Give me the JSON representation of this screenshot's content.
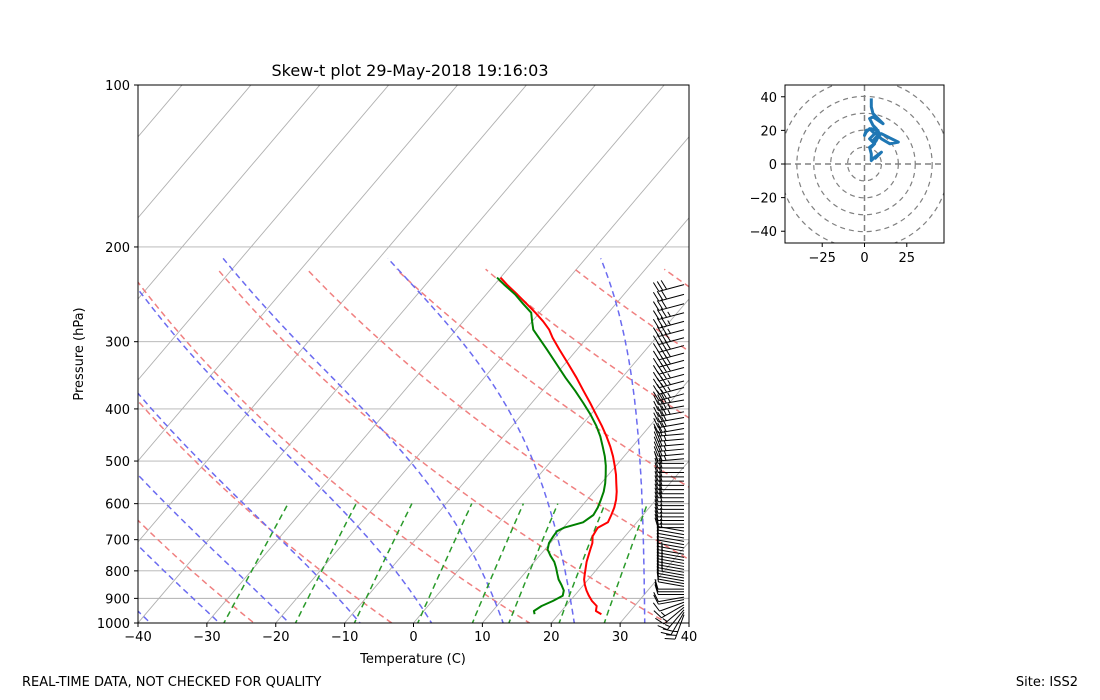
{
  "chart_data": [
    {
      "type": "skew-t",
      "title": "Skew-t plot 29-May-2018 19:16:03",
      "xlabel": "Temperature (C)",
      "ylabel": "Pressure (hPa)",
      "xlim": [
        -40,
        40
      ],
      "ylim": [
        1000,
        100
      ],
      "xticks": [
        -40,
        -30,
        -20,
        -10,
        0,
        10,
        20,
        30,
        40
      ],
      "xtick_labels": [
        "−40",
        "−30",
        "−20",
        "−10",
        "0",
        "10",
        "20",
        "30",
        "40"
      ],
      "yticks": [
        1000,
        900,
        800,
        700,
        600,
        500,
        400,
        300,
        200,
        100
      ],
      "ytick_labels": [
        "1000",
        "900",
        "800",
        "700",
        "600",
        "500",
        "400",
        "300",
        "200",
        "100"
      ],
      "series": [
        {
          "name": "Temperature",
          "color": "#ff0000",
          "points": [
            [
              963,
              26.2
            ],
            [
              950,
              25.0
            ],
            [
              930,
              24.5
            ],
            [
              910,
              23.2
            ],
            [
              890,
              22.1
            ],
            [
              870,
              21.1
            ],
            [
              850,
              20.2
            ],
            [
              830,
              19.4
            ],
            [
              810,
              18.8
            ],
            [
              790,
              18.2
            ],
            [
              770,
              17.6
            ],
            [
              750,
              17.1
            ],
            [
              730,
              16.6
            ],
            [
              710,
              16.1
            ],
            [
              690,
              15.3
            ],
            [
              675,
              15.1
            ],
            [
              665,
              15.0
            ],
            [
              650,
              15.8
            ],
            [
              630,
              15.4
            ],
            [
              610,
              14.9
            ],
            [
              590,
              14.2
            ],
            [
              570,
              13.3
            ],
            [
              550,
              12.2
            ],
            [
              530,
              11.1
            ],
            [
              510,
              9.8
            ],
            [
              490,
              8.4
            ],
            [
              470,
              6.8
            ],
            [
              450,
              5.0
            ],
            [
              430,
              3.0
            ],
            [
              410,
              0.8
            ],
            [
              390,
              -1.5
            ],
            [
              370,
              -4.0
            ],
            [
              350,
              -6.6
            ],
            [
              330,
              -9.5
            ],
            [
              310,
              -12.6
            ],
            [
              295,
              -15.0
            ],
            [
              285,
              -16.5
            ],
            [
              275,
              -18.4
            ],
            [
              265,
              -20.6
            ],
            [
              255,
              -23.0
            ],
            [
              245,
              -25.5
            ],
            [
              235,
              -28.2
            ],
            [
              228,
              -30.0
            ]
          ]
        },
        {
          "name": "Dewpoint",
          "color": "#008000",
          "points": [
            [
              963,
              16.5
            ],
            [
              950,
              16.0
            ],
            [
              930,
              16.5
            ],
            [
              910,
              17.5
            ],
            [
              890,
              18.3
            ],
            [
              870,
              17.8
            ],
            [
              850,
              16.8
            ],
            [
              830,
              15.7
            ],
            [
              810,
              14.8
            ],
            [
              790,
              13.9
            ],
            [
              770,
              12.9
            ],
            [
              750,
              11.6
            ],
            [
              730,
              10.4
            ],
            [
              710,
              9.8
            ],
            [
              690,
              9.6
            ],
            [
              675,
              9.5
            ],
            [
              665,
              10.1
            ],
            [
              650,
              12.2
            ],
            [
              630,
              12.8
            ],
            [
              610,
              12.5
            ],
            [
              590,
              12.0
            ],
            [
              570,
              11.4
            ],
            [
              550,
              10.6
            ],
            [
              530,
              9.6
            ],
            [
              510,
              8.5
            ],
            [
              490,
              7.2
            ],
            [
              470,
              5.7
            ],
            [
              450,
              4.1
            ],
            [
              430,
              2.2
            ],
            [
              410,
              0.0
            ],
            [
              390,
              -2.5
            ],
            [
              370,
              -5.2
            ],
            [
              350,
              -8.2
            ],
            [
              330,
              -11.2
            ],
            [
              310,
              -14.4
            ],
            [
              295,
              -17.0
            ],
            [
              285,
              -18.8
            ],
            [
              275,
              -20.0
            ],
            [
              265,
              -21.2
            ],
            [
              255,
              -23.5
            ],
            [
              245,
              -25.8
            ],
            [
              235,
              -28.6
            ],
            [
              228,
              -30.5
            ]
          ]
        }
      ],
      "dry_adiabats_theta_k": [
        250,
        270,
        290,
        310,
        330,
        350,
        370,
        390,
        410,
        430
      ],
      "moist_adiabats_start_t_c": [
        -35,
        -25,
        -15,
        -5,
        5,
        15,
        25,
        35
      ],
      "mixing_ratio_lines_g_per_kg": [
        0.4,
        1,
        2,
        4,
        7,
        10,
        16,
        24
      ],
      "wind_barbs": {
        "description": "wind barbs along right edge",
        "pressures": [
          965,
          955,
          945,
          935,
          925,
          915,
          905,
          895,
          885,
          875,
          865,
          855,
          845,
          835,
          825,
          815,
          805,
          795,
          785,
          775,
          765,
          755,
          745,
          735,
          725,
          715,
          705,
          695,
          685,
          675,
          665,
          655,
          645,
          635,
          625,
          615,
          605,
          595,
          585,
          575,
          565,
          555,
          545,
          535,
          525,
          515,
          505,
          495,
          485,
          475,
          465,
          455,
          445,
          435,
          425,
          415,
          405,
          395,
          385,
          375,
          365,
          355,
          345,
          335,
          325,
          315,
          305,
          295,
          285,
          275,
          265,
          255,
          245,
          235
        ],
        "speed_kt": [
          25,
          20,
          18,
          15,
          15,
          12,
          10,
          10,
          10,
          10,
          10,
          10,
          10,
          10,
          10,
          15,
          15,
          15,
          15,
          15,
          15,
          15,
          15,
          15,
          10,
          10,
          10,
          10,
          10,
          10,
          15,
          15,
          15,
          15,
          15,
          15,
          15,
          20,
          20,
          20,
          20,
          20,
          20,
          20,
          20,
          20,
          20,
          25,
          25,
          25,
          25,
          25,
          25,
          30,
          30,
          30,
          35,
          35,
          35,
          35,
          35,
          35,
          35,
          40,
          40,
          40,
          40,
          40,
          35,
          35,
          35,
          30,
          30,
          30
        ],
        "direction_deg": [
          200,
          210,
          220,
          230,
          240,
          250,
          260,
          260,
          270,
          270,
          270,
          280,
          280,
          280,
          280,
          280,
          280,
          280,
          280,
          280,
          280,
          280,
          280,
          280,
          280,
          280,
          280,
          280,
          280,
          280,
          270,
          270,
          270,
          270,
          270,
          270,
          270,
          270,
          270,
          270,
          270,
          270,
          270,
          270,
          270,
          270,
          270,
          265,
          265,
          265,
          265,
          265,
          265,
          260,
          260,
          260,
          260,
          260,
          260,
          255,
          255,
          255,
          255,
          255,
          255,
          255,
          255,
          255,
          255,
          255,
          255,
          255,
          255,
          255
        ]
      }
    },
    {
      "type": "hodograph",
      "xlim": [
        -47,
        47
      ],
      "ylim": [
        -47,
        47
      ],
      "xticks": [
        -25,
        0,
        25
      ],
      "xtick_labels": [
        "−25",
        "0",
        "25"
      ],
      "yticks": [
        40,
        20,
        0,
        -20,
        -40
      ],
      "ytick_labels": [
        "40",
        "20",
        "0",
        "−20",
        "−40"
      ],
      "rings": [
        10,
        20,
        30,
        40,
        50
      ],
      "color": "#1f77b4",
      "points": [
        [
          6,
          3
        ],
        [
          10,
          7
        ],
        [
          6,
          4
        ],
        [
          4,
          2
        ],
        [
          4,
          6
        ],
        [
          3,
          10
        ],
        [
          6,
          12
        ],
        [
          5,
          14
        ],
        [
          7,
          16
        ],
        [
          10,
          18
        ],
        [
          14,
          16
        ],
        [
          20,
          13
        ],
        [
          15,
          12
        ],
        [
          10,
          15
        ],
        [
          8,
          17
        ],
        [
          5,
          19
        ],
        [
          3,
          21
        ],
        [
          1,
          19
        ],
        [
          0,
          17
        ],
        [
          1,
          20
        ],
        [
          4,
          21
        ],
        [
          8,
          20
        ],
        [
          5,
          17
        ],
        [
          3,
          15
        ],
        [
          6,
          12
        ],
        [
          4,
          10
        ],
        [
          7,
          14
        ],
        [
          9,
          18
        ],
        [
          7,
          21
        ],
        [
          5,
          23
        ],
        [
          3,
          27
        ],
        [
          5,
          28
        ],
        [
          8,
          26
        ],
        [
          11,
          24
        ],
        [
          8,
          27
        ],
        [
          5,
          30
        ],
        [
          4,
          34
        ],
        [
          4,
          39
        ]
      ]
    }
  ],
  "footer": {
    "left": "REAL-TIME DATA, NOT CHECKED FOR QUALITY",
    "right": "Site: ISS2"
  },
  "colors": {
    "temperature": "#ff0000",
    "dewpoint": "#008000",
    "isotherm": "#b0b0b0",
    "dry_adiabat": "#f08080",
    "moist_adiabat": "#6b6bf0",
    "mixing_ratio": "#2a9a2a",
    "hodograph": "#1f77b4"
  }
}
